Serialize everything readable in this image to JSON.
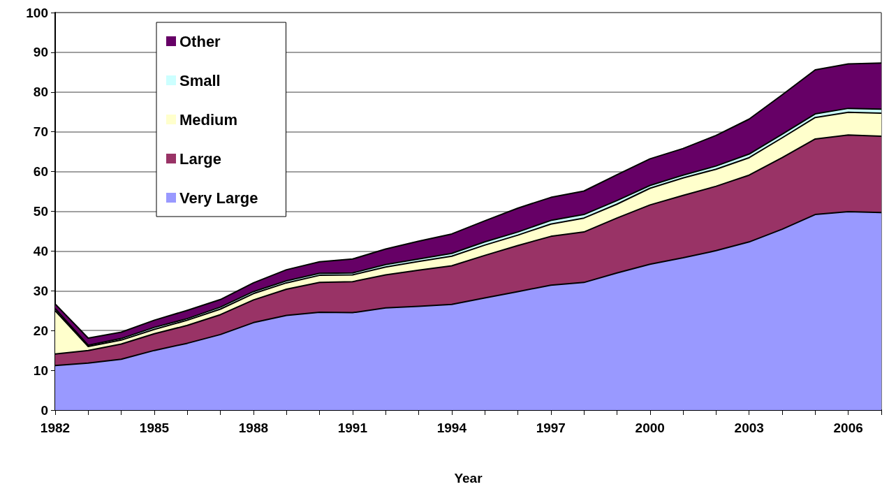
{
  "chart_data": {
    "type": "area",
    "stacked": true,
    "xlabel": "Year",
    "x": [
      1982,
      1983,
      1984,
      1985,
      1986,
      1987,
      1988,
      1989,
      1990,
      1991,
      1992,
      1993,
      1994,
      1995,
      1996,
      1997,
      1998,
      1999,
      2000,
      2001,
      2002,
      2003,
      2004,
      2005,
      2006,
      2007
    ],
    "xlim": [
      1982,
      2007
    ],
    "xticks": [
      1982,
      {
        "value": 1983,
        "label": null
      },
      {
        "value": 1984,
        "label": null
      },
      1985,
      {
        "value": 1986,
        "label": null
      },
      {
        "value": 1987,
        "label": null
      },
      1988,
      {
        "value": 1989,
        "label": null
      },
      {
        "value": 1990,
        "label": null
      },
      1991,
      {
        "value": 1992,
        "label": null
      },
      {
        "value": 1993,
        "label": null
      },
      1994,
      {
        "value": 1995,
        "label": null
      },
      {
        "value": 1996,
        "label": null
      },
      1997,
      {
        "value": 1998,
        "label": null
      },
      {
        "value": 1999,
        "label": null
      },
      2000,
      {
        "value": 2001,
        "label": null
      },
      {
        "value": 2002,
        "label": null
      },
      2003,
      {
        "value": 2004,
        "label": null
      },
      {
        "value": 2005,
        "label": null
      },
      2006,
      {
        "value": 2007,
        "label": null
      }
    ],
    "ylim": [
      0,
      100
    ],
    "yticks": [
      0,
      10,
      20,
      30,
      40,
      50,
      60,
      70,
      80,
      90,
      100
    ],
    "grid": "y",
    "legend": "top left",
    "line_style": "solid",
    "series": [
      {
        "name": "Very Large",
        "color": "#9999ff",
        "values": [
          11.2,
          11.8,
          12.8,
          15.0,
          16.8,
          19.0,
          22.0,
          23.8,
          24.6,
          24.5,
          25.7,
          26.1,
          26.6,
          28.2,
          29.8,
          31.4,
          32.1,
          34.5,
          36.7,
          38.3,
          40.1,
          42.3,
          45.5,
          49.2,
          49.9,
          49.7
        ]
      },
      {
        "name": "Large",
        "color": "#993366",
        "values": [
          2.9,
          3.2,
          3.8,
          4.2,
          4.5,
          5.0,
          5.7,
          6.6,
          7.5,
          7.8,
          8.3,
          9.1,
          9.7,
          10.7,
          11.6,
          12.3,
          12.7,
          13.8,
          14.9,
          15.7,
          16.2,
          16.8,
          18.0,
          19.0,
          19.3,
          19.2
        ]
      },
      {
        "name": "Medium",
        "color": "#ffffcc",
        "values": [
          10.9,
          1.0,
          1.0,
          1.1,
          1.3,
          1.4,
          1.6,
          1.6,
          1.8,
          1.7,
          2.0,
          2.2,
          2.4,
          2.6,
          2.6,
          3.1,
          3.5,
          3.5,
          4.2,
          4.4,
          4.3,
          4.4,
          5.0,
          5.4,
          5.7,
          5.8
        ]
      },
      {
        "name": "Small",
        "color": "#ccffff",
        "values": [
          0.5,
          0.3,
          0.4,
          0.5,
          0.4,
          0.5,
          0.5,
          0.5,
          0.5,
          0.5,
          0.6,
          0.6,
          0.7,
          0.8,
          0.8,
          0.9,
          0.9,
          0.9,
          0.7,
          0.7,
          0.8,
          0.9,
          0.9,
          0.9,
          1.0,
          1.0
        ]
      },
      {
        "name": "Other",
        "color": "#660066",
        "values": [
          1.2,
          1.8,
          1.6,
          1.8,
          2.1,
          1.9,
          2.2,
          2.8,
          2.9,
          3.5,
          3.9,
          4.5,
          4.9,
          5.3,
          6.0,
          5.8,
          5.9,
          6.5,
          6.7,
          6.7,
          7.7,
          8.8,
          9.9,
          11.1,
          11.2,
          11.6
        ]
      }
    ]
  }
}
